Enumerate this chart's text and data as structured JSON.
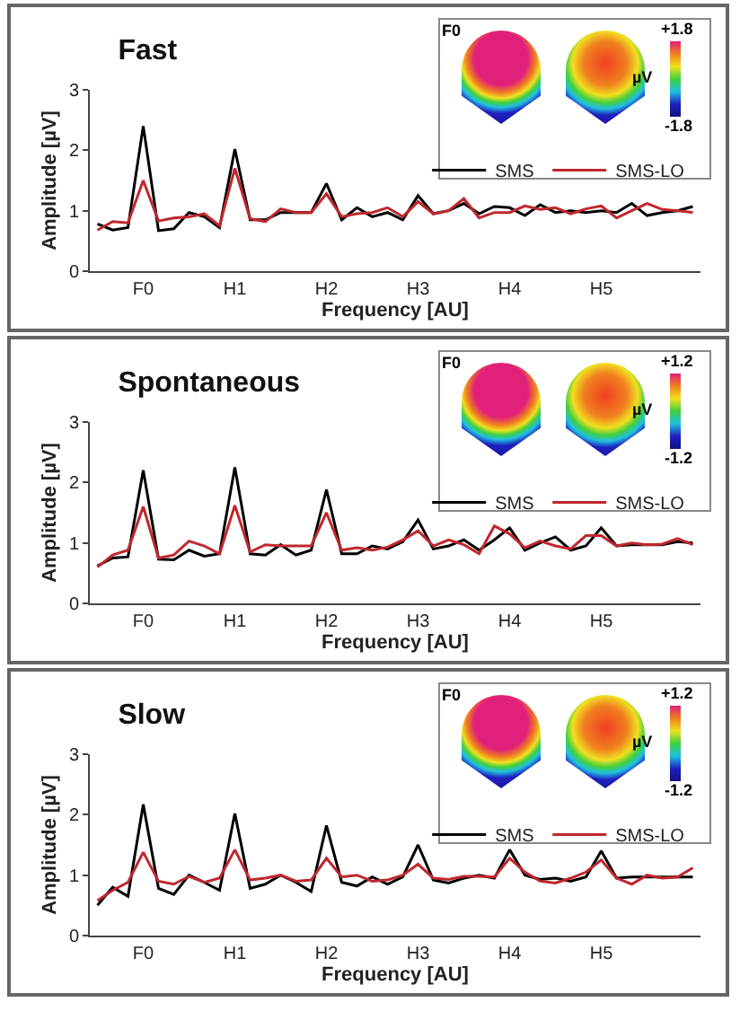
{
  "chart_data": [
    {
      "type": "line",
      "title": "Fast",
      "xlabel": "Frequency [AU]",
      "ylabel": "Amplitude [µV]",
      "annotations": [
        "F0",
        "+1.8",
        "µV",
        "-1.8"
      ],
      "categories": [
        null,
        null,
        null,
        "F0",
        null,
        null,
        null,
        null,
        null,
        "H1",
        null,
        null,
        null,
        null,
        null,
        "H2",
        null,
        null,
        null,
        null,
        null,
        "H3",
        null,
        null,
        null,
        null,
        null,
        "H4",
        null,
        null,
        null,
        null,
        null,
        "H5",
        null,
        null,
        null,
        null,
        null,
        null
      ],
      "ylim": [
        0,
        3
      ],
      "yticks": [
        0,
        1,
        2,
        3
      ],
      "grid": false,
      "legend": "top right",
      "marker": "none",
      "line_style": "solid",
      "series": [
        {
          "name": "SMS",
          "color": "#000000",
          "values": [
            0.78,
            0.68,
            0.72,
            2.4,
            0.67,
            0.7,
            0.97,
            0.9,
            0.72,
            2.02,
            0.85,
            0.85,
            0.97,
            0.97,
            0.97,
            1.45,
            0.85,
            1.05,
            0.9,
            0.97,
            0.85,
            1.25,
            0.95,
            1.0,
            1.12,
            0.95,
            1.07,
            1.05,
            0.92,
            1.1,
            0.97,
            1.0,
            0.97,
            1.0,
            0.97,
            1.12,
            0.92,
            0.97,
            1.0,
            1.07
          ]
        },
        {
          "name": "SMS-LO",
          "color": "#c0272d",
          "values": [
            0.68,
            0.82,
            0.8,
            1.5,
            0.83,
            0.88,
            0.9,
            0.95,
            0.75,
            1.7,
            0.87,
            0.82,
            1.03,
            0.97,
            0.97,
            1.28,
            0.9,
            0.95,
            0.97,
            1.05,
            0.9,
            1.15,
            0.95,
            1.0,
            1.2,
            0.88,
            0.97,
            0.97,
            1.08,
            1.02,
            1.05,
            0.95,
            1.03,
            1.08,
            0.88,
            1.0,
            1.12,
            1.02,
            1.0,
            0.97
          ]
        }
      ]
    },
    {
      "type": "line",
      "title": "Spontaneous",
      "xlabel": "Frequency [AU]",
      "ylabel": "Amplitude [µV]",
      "annotations": [
        "F0",
        "+1.2",
        "µV",
        "-1.2"
      ],
      "categories": [
        null,
        null,
        null,
        "F0",
        null,
        null,
        null,
        null,
        null,
        "H1",
        null,
        null,
        null,
        null,
        null,
        "H2",
        null,
        null,
        null,
        null,
        null,
        "H3",
        null,
        null,
        null,
        null,
        null,
        "H4",
        null,
        null,
        null,
        null,
        null,
        "H5",
        null,
        null,
        null,
        null,
        null,
        null
      ],
      "ylim": [
        0,
        3
      ],
      "yticks": [
        0,
        1,
        2,
        3
      ],
      "grid": false,
      "legend": "top right",
      "marker": "none",
      "line_style": "solid",
      "series": [
        {
          "name": "SMS",
          "color": "#000000",
          "values": [
            0.62,
            0.75,
            0.77,
            2.2,
            0.73,
            0.72,
            0.88,
            0.78,
            0.82,
            2.25,
            0.82,
            0.8,
            0.97,
            0.8,
            0.88,
            1.88,
            0.82,
            0.82,
            0.95,
            0.9,
            1.02,
            1.38,
            0.9,
            0.95,
            1.05,
            0.88,
            1.05,
            1.25,
            0.88,
            1.0,
            1.1,
            0.88,
            0.95,
            1.25,
            0.95,
            0.97,
            0.97,
            0.97,
            1.02,
            1.0
          ]
        },
        {
          "name": "SMS-LO",
          "color": "#c0272d",
          "values": [
            0.6,
            0.8,
            0.88,
            1.6,
            0.75,
            0.8,
            1.03,
            0.95,
            0.82,
            1.62,
            0.85,
            0.97,
            0.95,
            0.95,
            0.95,
            1.5,
            0.88,
            0.92,
            0.88,
            0.93,
            1.05,
            1.2,
            0.95,
            1.05,
            0.97,
            0.82,
            1.28,
            1.15,
            0.92,
            1.03,
            0.95,
            0.9,
            1.12,
            1.12,
            0.95,
            1.0,
            0.97,
            0.98,
            1.07,
            0.97
          ]
        }
      ]
    },
    {
      "type": "line",
      "title": "Slow",
      "xlabel": "Frequency [AU]",
      "ylabel": "Amplitude [µV]",
      "annotations": [
        "F0",
        "+1.2",
        "µV",
        "-1.2"
      ],
      "categories": [
        null,
        null,
        null,
        "F0",
        null,
        null,
        null,
        null,
        null,
        "H1",
        null,
        null,
        null,
        null,
        null,
        "H2",
        null,
        null,
        null,
        null,
        null,
        "H3",
        null,
        null,
        null,
        null,
        null,
        "H4",
        null,
        null,
        null,
        null,
        null,
        "H5",
        null,
        null,
        null,
        null,
        null,
        null
      ],
      "ylim": [
        0,
        3
      ],
      "yticks": [
        0,
        1,
        2,
        3
      ],
      "grid": false,
      "legend": "top right",
      "marker": "none",
      "line_style": "solid",
      "series": [
        {
          "name": "SMS",
          "color": "#000000",
          "values": [
            0.5,
            0.8,
            0.65,
            2.17,
            0.78,
            0.68,
            1.0,
            0.88,
            0.75,
            2.02,
            0.78,
            0.85,
            1.0,
            0.88,
            0.73,
            1.82,
            0.88,
            0.82,
            0.97,
            0.85,
            0.97,
            1.5,
            0.92,
            0.87,
            0.95,
            1.0,
            0.95,
            1.42,
            1.0,
            0.93,
            0.95,
            0.9,
            0.97,
            1.4,
            0.95,
            0.97,
            0.97,
            0.97,
            0.97,
            0.97
          ]
        },
        {
          "name": "SMS-LO",
          "color": "#c0272d",
          "values": [
            0.58,
            0.75,
            0.88,
            1.38,
            0.9,
            0.85,
            0.98,
            0.88,
            0.95,
            1.42,
            0.92,
            0.95,
            1.0,
            0.9,
            0.92,
            1.28,
            0.97,
            1.0,
            0.9,
            0.92,
            1.0,
            1.18,
            0.95,
            0.93,
            0.98,
            0.98,
            0.97,
            1.28,
            1.05,
            0.9,
            0.87,
            0.95,
            1.05,
            1.25,
            0.95,
            0.85,
            1.0,
            0.95,
            0.97,
            1.12
          ]
        }
      ]
    }
  ]
}
